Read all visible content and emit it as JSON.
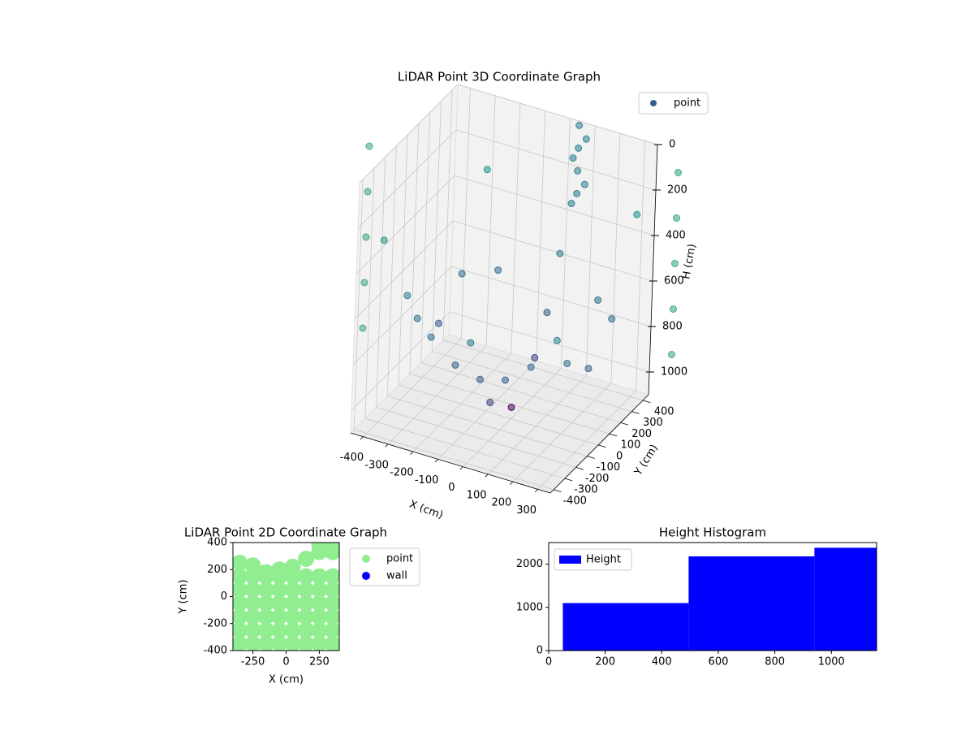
{
  "chart_data": [
    {
      "type": "scatter3d",
      "title": "LiDAR Point 3D Coordinate Graph",
      "xlabel": "X (cm)",
      "ylabel": "Y (cm)",
      "zlabel": "H (cm)",
      "xlim": [
        -450,
        350
      ],
      "ylim": [
        -430,
        450
      ],
      "zlim": [
        0,
        1100
      ],
      "z_inverted": true,
      "xticks": [
        -400,
        -300,
        -200,
        -100,
        0,
        100,
        200,
        300
      ],
      "yticks": [
        -400,
        -300,
        -200,
        -100,
        0,
        100,
        200,
        300,
        400
      ],
      "zticks": [
        0,
        200,
        400,
        600,
        800,
        1000
      ],
      "colormap": "viridis",
      "legend": "upper right",
      "grid": true,
      "series": [
        {
          "name": "point",
          "x": [
            -400,
            -300,
            -200,
            -100,
            0,
            100,
            200,
            300,
            0,
            0,
            0,
            0,
            0,
            -300,
            -300,
            -300,
            -300,
            300,
            300,
            300,
            300,
            -200,
            0,
            200,
            50,
            50,
            50,
            50,
            80,
            80,
            30,
            30,
            -600,
            -600,
            -600,
            -600,
            -600,
            500,
            500,
            500,
            500,
            500
          ],
          "y": [
            -300,
            -300,
            -300,
            -300,
            -300,
            -300,
            -300,
            -300,
            -400,
            -200,
            0,
            200,
            400,
            -200,
            0,
            200,
            400,
            -200,
            0,
            200,
            400,
            300,
            300,
            300,
            420,
            420,
            420,
            420,
            420,
            420,
            420,
            420,
            0,
            0,
            0,
            0,
            0,
            300,
            300,
            300,
            300,
            300
          ],
          "z": [
            300,
            510,
            660,
            750,
            780,
            750,
            660,
            510,
            570,
            930,
            1050,
            930,
            570,
            660,
            780,
            660,
            300,
            660,
            780,
            660,
            300,
            660,
            780,
            660,
            0,
            100,
            200,
            300,
            50,
            250,
            150,
            350,
            100,
            300,
            500,
            700,
            900,
            0,
            200,
            400,
            600,
            800
          ]
        }
      ]
    },
    {
      "type": "scatter",
      "title": "LiDAR Point 2D Coordinate Graph",
      "xlabel": "X (cm)",
      "ylabel": "Y (cm)",
      "xlim": [
        -400,
        400
      ],
      "ylim": [
        -400,
        400
      ],
      "xticks": [
        -250,
        0,
        250
      ],
      "yticks": [
        -400,
        -200,
        0,
        200,
        400
      ],
      "legend": "outside right",
      "series": [
        {
          "name": "point",
          "color": "#90ee90",
          "x": [
            -350,
            -250,
            -150,
            -50,
            50,
            150,
            250,
            350,
            -350,
            -250,
            -150,
            -50,
            50,
            150,
            250,
            350,
            -350,
            -250,
            -150,
            -50,
            50,
            150,
            250,
            350,
            -350,
            -250,
            -150,
            -50,
            50,
            150,
            250,
            350,
            -350,
            -250,
            -150,
            -50,
            50,
            150,
            250,
            350,
            -350,
            -250,
            -150,
            -50,
            50,
            150,
            250,
            350,
            -350,
            -250,
            -150,
            -50,
            50,
            150,
            250,
            350,
            250,
            350
          ],
          "y": [
            -350,
            -350,
            -350,
            -350,
            -350,
            -350,
            -350,
            -350,
            -250,
            -250,
            -250,
            -250,
            -250,
            -250,
            -250,
            -250,
            -150,
            -150,
            -150,
            -150,
            -150,
            -150,
            -150,
            -150,
            -50,
            -50,
            -50,
            -50,
            -50,
            -50,
            -50,
            -50,
            50,
            50,
            50,
            50,
            50,
            50,
            50,
            50,
            150,
            150,
            150,
            150,
            150,
            150,
            150,
            150,
            250,
            230,
            180,
            200,
            220,
            280,
            330,
            330,
            390,
            390
          ]
        },
        {
          "name": "wall",
          "color": "#0000ff",
          "x": [],
          "y": []
        }
      ]
    },
    {
      "type": "histogram",
      "title": "Height Histogram",
      "name": "Height",
      "color": "#0000ff",
      "bins": [
        50,
        495,
        940,
        1160
      ],
      "values": [
        1100,
        2180,
        2380
      ],
      "xlim": [
        0,
        1160
      ],
      "ylim": [
        0,
        2500
      ],
      "xticks": [
        0,
        200,
        400,
        600,
        800,
        1000
      ],
      "yticks": [
        0,
        1000,
        2000
      ],
      "legend": "upper left"
    }
  ]
}
